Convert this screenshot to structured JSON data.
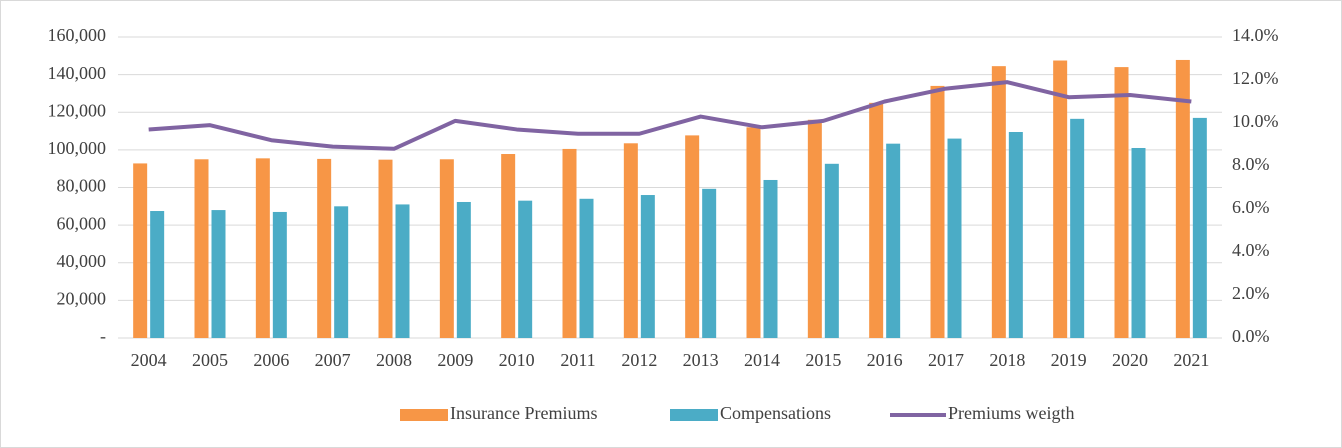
{
  "chart_data": {
    "type": "bar_line",
    "categories": [
      "2004",
      "2005",
      "2006",
      "2007",
      "2008",
      "2009",
      "2010",
      "2011",
      "2012",
      "2013",
      "2014",
      "2015",
      "2016",
      "2017",
      "2018",
      "2019",
      "2020",
      "2021"
    ],
    "series": [
      {
        "name": "Insurance Premiums",
        "type": "bar",
        "color": "#f79646",
        "values": [
          92800,
          95000,
          95500,
          95200,
          94800,
          95000,
          97800,
          100500,
          103500,
          107700,
          112000,
          116000,
          125000,
          134000,
          144500,
          147500,
          144000,
          147800
        ]
      },
      {
        "name": "Compensations",
        "type": "bar",
        "color": "#4bacc6",
        "values": [
          67500,
          68000,
          67000,
          70000,
          71000,
          72300,
          73000,
          74000,
          76000,
          79300,
          84000,
          92600,
          103300,
          106000,
          109500,
          116500,
          101000,
          117000
        ]
      },
      {
        "name": "Premiums weigth",
        "type": "line",
        "axis": "y2",
        "color": "#8064a2",
        "values": [
          9.7,
          9.9,
          9.2,
          8.9,
          8.8,
          10.1,
          9.7,
          9.5,
          9.5,
          10.3,
          9.8,
          10.1,
          11.0,
          11.6,
          11.9,
          11.2,
          11.3,
          11.0
        ]
      }
    ],
    "ylim": [
      0,
      160000
    ],
    "yticks": [
      {
        "value": 0,
        "label": "-"
      },
      {
        "value": 20000,
        "label": "20,000"
      },
      {
        "value": 40000,
        "label": "40,000"
      },
      {
        "value": 60000,
        "label": "60,000"
      },
      {
        "value": 80000,
        "label": "80,000"
      },
      {
        "value": 100000,
        "label": "100,000"
      },
      {
        "value": 120000,
        "label": "120,000"
      },
      {
        "value": 140000,
        "label": "140,000"
      },
      {
        "value": 160000,
        "label": "160,000"
      }
    ],
    "y2lim": [
      0,
      14
    ],
    "y2ticks": [
      {
        "value": 0,
        "label": "0.0%"
      },
      {
        "value": 2,
        "label": "2.0%"
      },
      {
        "value": 4,
        "label": "4.0%"
      },
      {
        "value": 6,
        "label": "6.0%"
      },
      {
        "value": 8,
        "label": "8.0%"
      },
      {
        "value": 10,
        "label": "10.0%"
      },
      {
        "value": 12,
        "label": "12.0%"
      },
      {
        "value": 14,
        "label": "14.0%"
      }
    ],
    "grid": true,
    "legend": "bottom"
  }
}
